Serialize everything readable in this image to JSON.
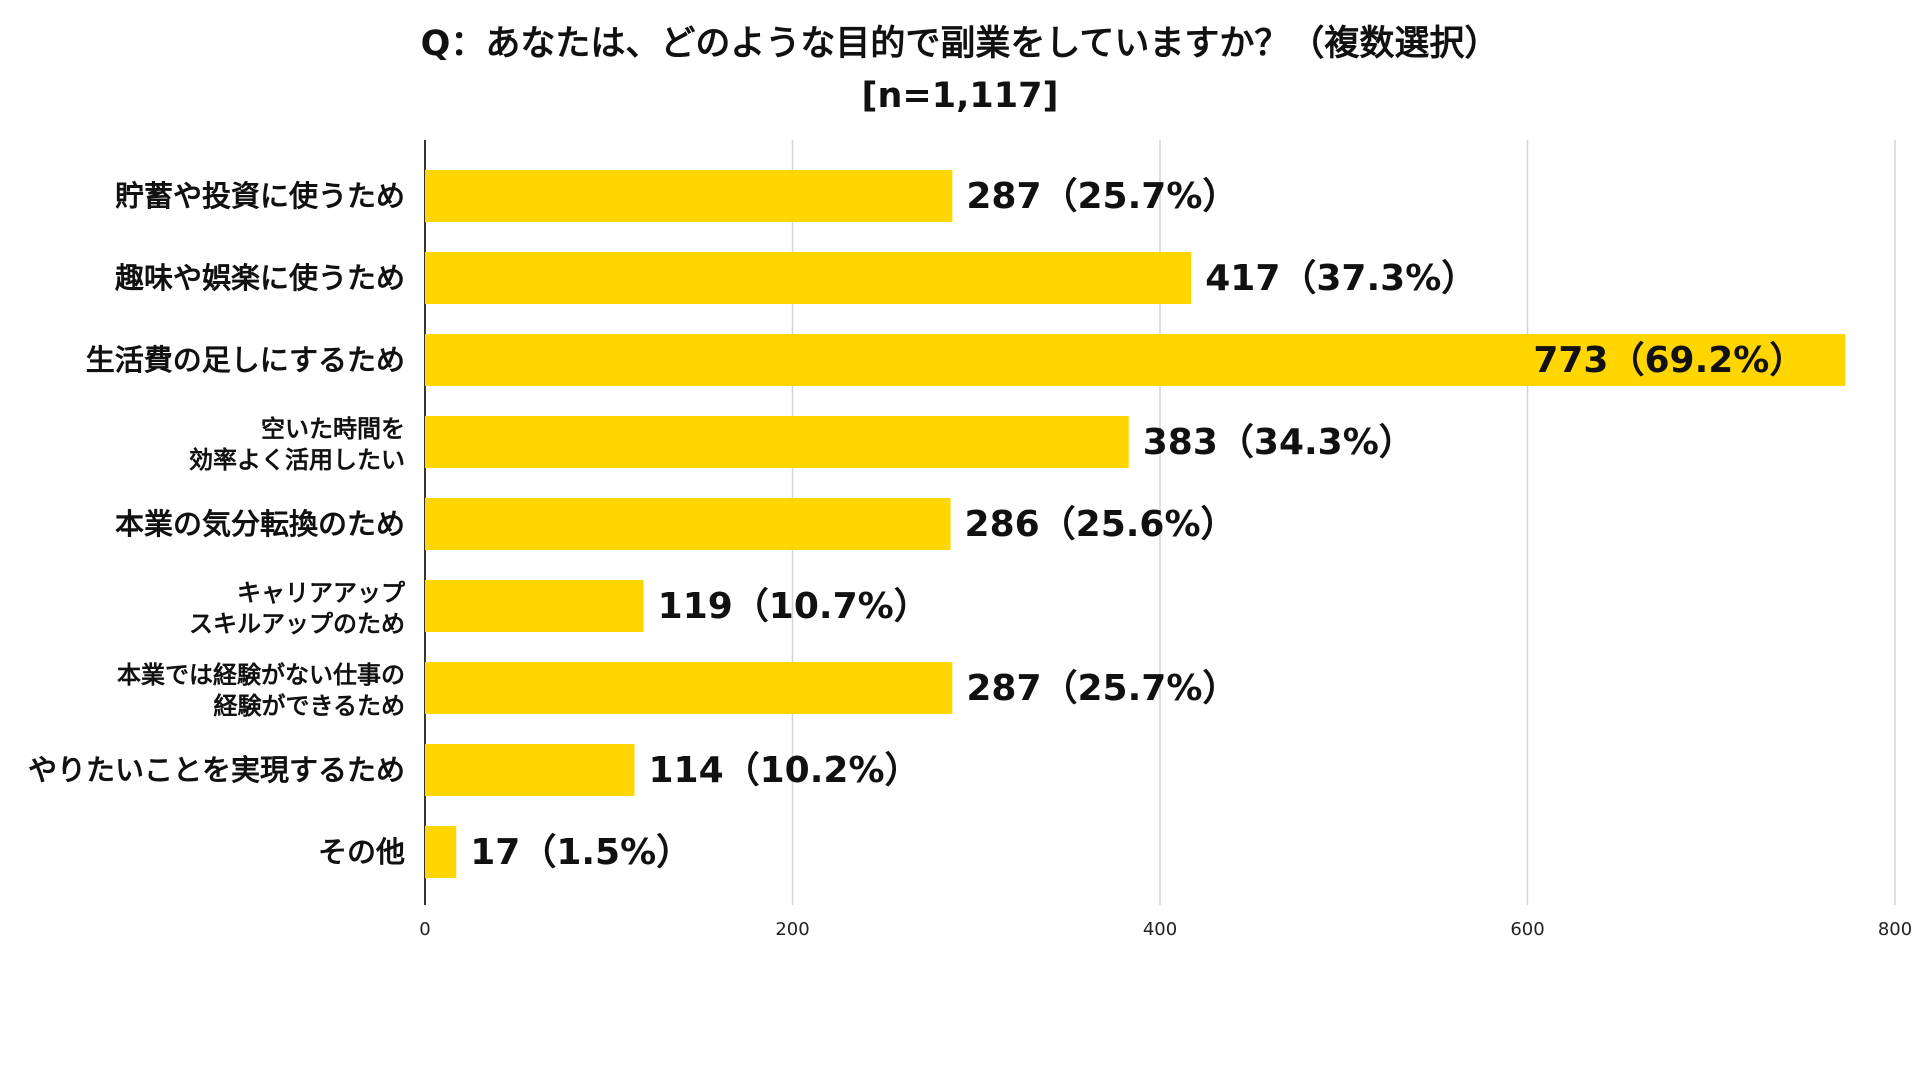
{
  "title_line1": "Q：あなたは、どのような目的で副業をしていますか？（複数選択）",
  "title_line2": "[n=1,117]",
  "bar_color": "#FFD600",
  "chart_data": {
    "type": "bar",
    "orientation": "horizontal",
    "title": "Q：あなたは、どのような目的で副業をしていますか？（複数選択）",
    "subtitle": "[n=1,117]",
    "categories": [
      [
        "貯蓄や投資に使うため"
      ],
      [
        "趣味や娯楽に使うため"
      ],
      [
        "生活費の足しにするため"
      ],
      [
        "空いた時間を",
        "効率よく活用したい"
      ],
      [
        "本業の気分転換のため"
      ],
      [
        "キャリアアップ",
        "スキルアップのため"
      ],
      [
        "本業では経験がない仕事の",
        "経験ができるため"
      ],
      [
        "やりたいことを実現するため"
      ],
      [
        "その他"
      ]
    ],
    "values": [
      287,
      417,
      773,
      383,
      286,
      119,
      287,
      114,
      17
    ],
    "data_labels": [
      "287（25.7%）",
      "417（37.3%）",
      "773（69.2%）",
      "383（34.3%）",
      "286（25.6%）",
      "119（10.7%）",
      "287（25.7%）",
      "114（10.2%）",
      "17（1.5%）"
    ],
    "xlim": [
      0,
      800
    ],
    "xticks": [
      "0",
      "200",
      "400",
      "600",
      "800"
    ],
    "grid": true,
    "legend": "none"
  }
}
